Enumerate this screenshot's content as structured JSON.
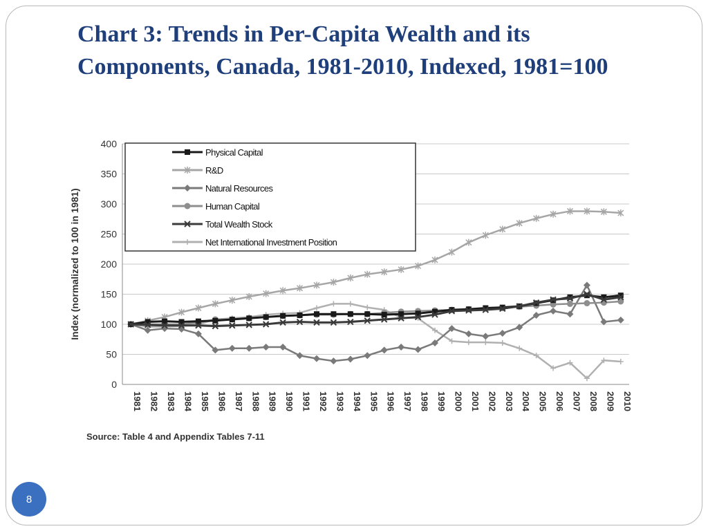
{
  "slide": {
    "title": "Chart 3: Trends in Per-Capita Wealth and its Components, Canada, 1981-2010, Indexed, 1981=100",
    "page_number": "8",
    "colors": {
      "title": "#1f3f7a",
      "badge": "#3b6fc0",
      "frame": "#b8b8b8"
    }
  },
  "chart_data": {
    "type": "line",
    "title": "",
    "xlabel": "",
    "ylabel": "Index (normalized to 100 in 1981)",
    "ylim": [
      0,
      400
    ],
    "yticks": [
      0,
      50,
      100,
      150,
      200,
      250,
      300,
      350,
      400
    ],
    "grid": true,
    "legend_position": "top-left",
    "source_note": "Source: Table 4 and Appendix Tables 7-11",
    "x": [
      "1981",
      "1982",
      "1983",
      "1984",
      "1985",
      "1986",
      "1987",
      "1988",
      "1989",
      "1990",
      "1991",
      "1992",
      "1993",
      "1994",
      "1995",
      "1996",
      "1997",
      "1998",
      "1999",
      "2000",
      "2001",
      "2002",
      "2003",
      "2004",
      "2005",
      "2006",
      "2007",
      "2008",
      "2009",
      "2010"
    ],
    "series": [
      {
        "name": "Physical Capital",
        "color": "#1a1a1a",
        "marker": "square",
        "values": [
          100,
          104,
          105,
          104,
          105,
          106,
          108,
          110,
          112,
          114,
          115,
          117,
          117,
          117,
          117,
          116,
          117,
          118,
          121,
          124,
          125,
          127,
          128,
          130,
          135,
          140,
          145,
          148,
          145,
          148
        ]
      },
      {
        "name": "R&D",
        "color": "#a6a6a6",
        "marker": "star",
        "values": [
          100,
          106,
          112,
          120,
          127,
          134,
          140,
          146,
          151,
          156,
          160,
          165,
          170,
          177,
          183,
          187,
          191,
          197,
          207,
          220,
          236,
          248,
          258,
          268,
          276,
          283,
          288,
          288,
          287,
          285
        ]
      },
      {
        "name": "Natural Resources",
        "color": "#7a7a7a",
        "marker": "diamond",
        "values": [
          100,
          90,
          93,
          92,
          84,
          57,
          60,
          60,
          62,
          62,
          48,
          43,
          39,
          42,
          48,
          57,
          62,
          58,
          69,
          93,
          84,
          80,
          85,
          95,
          115,
          122,
          117,
          165,
          104,
          107
        ]
      },
      {
        "name": "Human Capital",
        "color": "#8e8e8e",
        "marker": "circle",
        "values": [
          100,
          100,
          100,
          100,
          103,
          108,
          108,
          110,
          112,
          114,
          115,
          116,
          116,
          117,
          117,
          119,
          121,
          122,
          123,
          124,
          125,
          126,
          127,
          129,
          131,
          133,
          134,
          135,
          136,
          138
        ]
      },
      {
        "name": "Total Wealth Stock",
        "color": "#3a3a3a",
        "marker": "x",
        "values": [
          100,
          99,
          98,
          98,
          98,
          97,
          98,
          99,
          100,
          103,
          104,
          103,
          103,
          104,
          106,
          108,
          110,
          112,
          116,
          122,
          123,
          124,
          126,
          130,
          136,
          141,
          143,
          150,
          141,
          145
        ]
      },
      {
        "name": "Net International Investment Position",
        "color": "#b0b0b0",
        "marker": "plus",
        "values": [
          100,
          96,
          96,
          97,
          100,
          108,
          110,
          112,
          116,
          118,
          119,
          127,
          134,
          134,
          128,
          124,
          111,
          110,
          90,
          72,
          70,
          70,
          69,
          60,
          48,
          27,
          36,
          10,
          40,
          38
        ]
      }
    ]
  }
}
